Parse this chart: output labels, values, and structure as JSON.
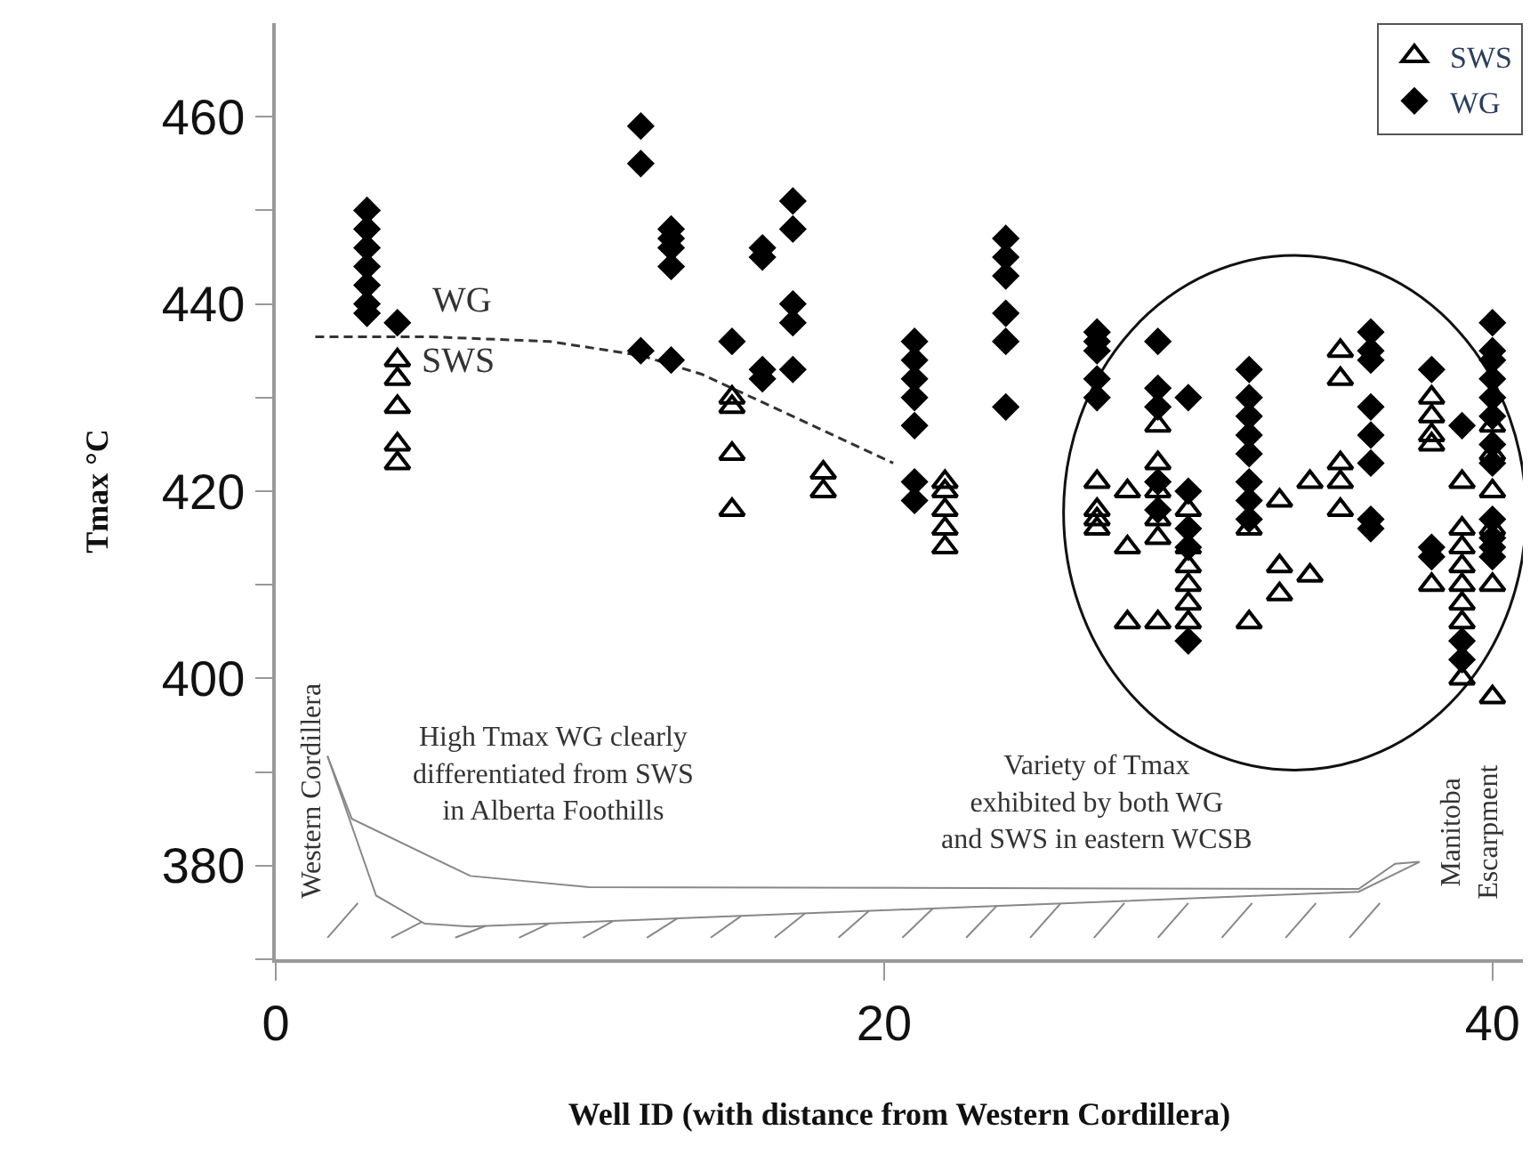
{
  "chart_data": {
    "type": "scatter",
    "xlabel": "Well ID (with distance from Western Cordillera)",
    "ylabel": "Tmax °C",
    "xlim": [
      0,
      41
    ],
    "xticks": [
      0,
      20,
      40
    ],
    "ylim": [
      370,
      470
    ],
    "yticks": [
      {
        "value": 370,
        "label": null
      },
      380,
      {
        "value": 390,
        "label": null
      },
      400,
      {
        "value": 410,
        "label": null
      },
      420,
      {
        "value": 430,
        "label": null
      },
      440,
      {
        "value": 450,
        "label": null
      },
      460
    ],
    "grid": false,
    "legend": "top right",
    "series": [
      {
        "type": "line",
        "color": "#333333",
        "line_style": "dashed",
        "marker": "none",
        "x": [
          1.3,
          5,
          9,
          12,
          14,
          17,
          20.3
        ],
        "values": [
          436.5,
          436.5,
          436,
          434.5,
          432.5,
          428,
          423
        ]
      },
      {
        "name": "SWS",
        "color": "#000000",
        "marker": "triangle",
        "x": [
          4,
          4,
          4,
          4,
          4,
          15,
          15,
          15,
          15,
          18,
          18,
          22,
          22,
          22,
          22,
          22,
          27,
          27,
          27,
          27,
          28,
          28,
          28,
          29,
          29,
          29,
          29,
          29,
          29,
          30,
          30,
          30,
          30,
          30,
          30,
          32,
          32,
          33,
          33,
          33,
          34,
          34,
          35,
          35,
          35,
          35,
          35,
          38,
          38,
          38,
          38,
          38,
          39,
          39,
          39,
          39,
          39,
          39,
          39,
          39,
          40,
          40,
          40,
          40,
          40,
          40
        ],
        "values": [
          434,
          432,
          429,
          425,
          423,
          430,
          429,
          424,
          418,
          422,
          420,
          421,
          420,
          418,
          416,
          414,
          421,
          418,
          417,
          416,
          420,
          414,
          406,
          427,
          423,
          420,
          417,
          415,
          406,
          418,
          414,
          412,
          410,
          408,
          406,
          416,
          406,
          419,
          412,
          409,
          421,
          411,
          435,
          432,
          423,
          421,
          418,
          430,
          428,
          426,
          425,
          410,
          421,
          416,
          414,
          412,
          410,
          408,
          406,
          400,
          427,
          424,
          420,
          416,
          410,
          398
        ]
      },
      {
        "name": "WG",
        "color": "#000000",
        "marker": "diamond",
        "x": [
          3,
          3,
          3,
          3,
          3,
          3,
          3,
          4,
          12,
          12,
          12,
          13,
          13,
          13,
          13,
          13,
          15,
          16,
          16,
          16,
          16,
          17,
          17,
          17,
          17,
          17,
          21,
          21,
          21,
          21,
          21,
          21,
          21,
          24,
          24,
          24,
          24,
          24,
          24,
          27,
          27,
          27,
          27,
          27,
          29,
          29,
          29,
          29,
          29,
          30,
          30,
          30,
          30,
          30,
          32,
          32,
          32,
          32,
          32,
          32,
          32,
          32,
          36,
          36,
          36,
          36,
          36,
          36,
          36,
          36,
          38,
          38,
          38,
          39,
          39,
          39,
          40,
          40,
          40,
          40,
          40,
          40,
          40,
          40,
          40,
          40,
          40,
          40
        ],
        "values": [
          450,
          448,
          446,
          444,
          442,
          440,
          439,
          438,
          459,
          455,
          435,
          448,
          447,
          446,
          444,
          434,
          436,
          446,
          445,
          433,
          432,
          451,
          448,
          440,
          438,
          433,
          436,
          434,
          432,
          430,
          427,
          421,
          419,
          447,
          445,
          443,
          439,
          436,
          429,
          437,
          436,
          435,
          432,
          430,
          436,
          431,
          429,
          421,
          418,
          430,
          420,
          416,
          414,
          404,
          433,
          430,
          428,
          426,
          424,
          421,
          419,
          417,
          437,
          435,
          434,
          429,
          426,
          423,
          417,
          416,
          433,
          414,
          413,
          427,
          404,
          402,
          438,
          435,
          434,
          432,
          430,
          428,
          425,
          423,
          417,
          415,
          414,
          413
        ]
      }
    ],
    "annotations": [
      "WG",
      "SWS",
      "High Tmax WG clearly\ndifferentiated from SWS\nin Alberta Foothills",
      "Variety of Tmax\nexhibited by both WG\nand SWS in eastern WCSB",
      "Western Cordillera",
      "Manitoba\nEscarpment"
    ]
  }
}
